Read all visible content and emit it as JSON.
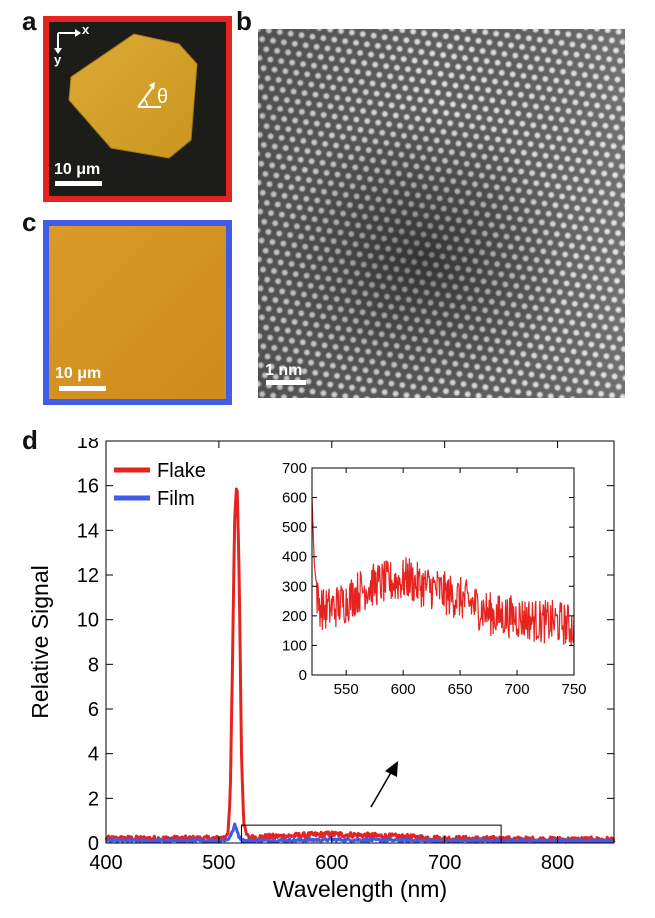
{
  "panels": {
    "a": {
      "letter": "a",
      "scalebar": "10 μm",
      "axis_x": "x",
      "axis_y": "y",
      "angle_label": "θ",
      "frame_color": "#e52421",
      "flake_color": "#d9a52f"
    },
    "b": {
      "letter": "b",
      "scalebar": "1 nm"
    },
    "c": {
      "letter": "c",
      "scalebar": "10 μm",
      "frame_color": "#3f5ce8",
      "film_color": "#d79524"
    },
    "d": {
      "letter": "d"
    }
  },
  "chart_data": [
    {
      "type": "line",
      "title": "",
      "xlabel": "Wavelength (nm)",
      "ylabel": "Relative Signal",
      "xlim": [
        400,
        850
      ],
      "ylim": [
        0,
        18
      ],
      "xticks": [
        400,
        500,
        600,
        700,
        800
      ],
      "yticks": [
        0,
        2,
        4,
        6,
        8,
        10,
        12,
        14,
        16,
        18
      ],
      "legend": [
        "Flake",
        "Film"
      ],
      "legend_position": "top-left",
      "series": [
        {
          "name": "Flake",
          "color": "#e52421",
          "x": [
            400,
            450,
            500,
            505,
            508,
            510,
            512,
            514,
            516,
            518,
            520,
            522,
            525,
            530,
            600,
            700,
            800,
            850
          ],
          "y": [
            0.2,
            0.2,
            0.2,
            0.25,
            0.5,
            2.0,
            8.0,
            14.5,
            16.3,
            12.0,
            4.0,
            0.8,
            0.3,
            0.25,
            0.4,
            0.2,
            0.15,
            0.15
          ]
        },
        {
          "name": "Film",
          "color": "#3f5ce8",
          "x": [
            400,
            450,
            500,
            508,
            512,
            514,
            516,
            518,
            522,
            530,
            600,
            700,
            800,
            850
          ],
          "y": [
            0.1,
            0.1,
            0.1,
            0.15,
            0.5,
            0.8,
            0.6,
            0.25,
            0.1,
            0.1,
            0.15,
            0.1,
            0.1,
            0.1
          ]
        }
      ],
      "zoom_box_x": [
        520,
        750
      ],
      "zoom_box_y": [
        0,
        0.8
      ]
    },
    {
      "type": "line",
      "title": "",
      "xlabel": "",
      "ylabel": "",
      "xlim": [
        520,
        750
      ],
      "ylim": [
        0,
        700
      ],
      "xticks": [
        550,
        600,
        650,
        700,
        750
      ],
      "yticks": [
        0,
        100,
        200,
        300,
        400,
        500,
        600,
        700
      ],
      "series": [
        {
          "name": "Flake",
          "color": "#e52421",
          "x": [
            520,
            522,
            525,
            530,
            540,
            550,
            560,
            570,
            580,
            590,
            600,
            605,
            610,
            620,
            630,
            640,
            650,
            660,
            670,
            680,
            690,
            700,
            710,
            720,
            730,
            740,
            750
          ],
          "y": [
            600,
            380,
            250,
            220,
            230,
            250,
            280,
            300,
            310,
            315,
            320,
            330,
            310,
            300,
            290,
            270,
            260,
            240,
            220,
            200,
            200,
            195,
            190,
            180,
            180,
            175,
            160
          ]
        }
      ]
    }
  ]
}
